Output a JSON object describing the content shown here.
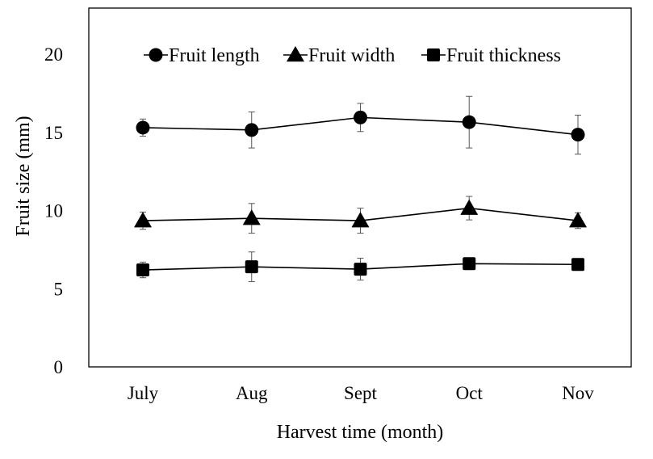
{
  "chart_data": {
    "type": "line",
    "title": "",
    "xlabel": "Harvest time (month)",
    "ylabel": "Fruit size (mm)",
    "ylim": [
      0,
      20
    ],
    "yticks": [
      0,
      5,
      10,
      15,
      20
    ],
    "categories": [
      "July",
      "Aug",
      "Sept",
      "Oct",
      "Nov"
    ],
    "grid": false,
    "legend_position": "top",
    "line_color": "#000000",
    "series": [
      {
        "name": "Fruit length",
        "marker": "circle",
        "values": [
          15.3,
          15.15,
          15.95,
          15.65,
          14.85
        ],
        "errors": [
          0.55,
          1.15,
          0.9,
          1.65,
          1.25
        ]
      },
      {
        "name": "Fruit width",
        "marker": "triangle",
        "values": [
          9.35,
          9.5,
          9.35,
          10.15,
          9.35
        ],
        "errors": [
          0.55,
          0.95,
          0.8,
          0.75,
          0.5
        ]
      },
      {
        "name": "Fruit thickness",
        "marker": "square",
        "values": [
          6.2,
          6.4,
          6.25,
          6.6,
          6.55
        ],
        "errors": [
          0.5,
          0.95,
          0.7,
          0.35,
          0.35
        ]
      }
    ]
  }
}
